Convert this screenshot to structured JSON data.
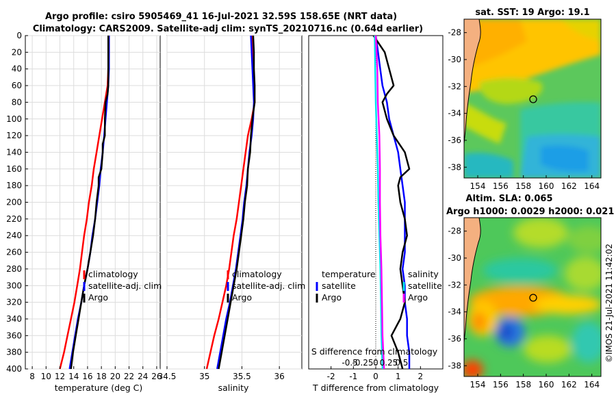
{
  "titles": {
    "line1": "Argo profile: csiro 5905469_41 16-Jul-2021 32.59S 158.65E (NRT data)",
    "line2": "Climatology: CARS2009. Satellite-adj clim: synTS_20210716.nc (0.64d earlier)"
  },
  "colors": {
    "climatology": "#ff0000",
    "satellite": "#0000ff",
    "argo": "#000000",
    "s_satellite": "#00e5ee",
    "s_argo": "#ff00ff"
  },
  "chart_data": [
    {
      "type": "line",
      "id": "temperature",
      "xlabel": "temperature (deg C)",
      "ylabel": "",
      "xlim": [
        7,
        26.5
      ],
      "ylim": [
        400,
        0
      ],
      "x_ticks": [
        "8",
        "10",
        "12",
        "14",
        "16",
        "18",
        "20",
        "22",
        "24",
        "26"
      ],
      "y_ticks": [
        "0",
        "20",
        "40",
        "60",
        "80",
        "100",
        "120",
        "140",
        "160",
        "180",
        "200",
        "220",
        "240",
        "260",
        "280",
        "300",
        "320",
        "340",
        "360",
        "380",
        "400"
      ],
      "grid": true,
      "legend": [
        "climatology",
        "satellite-adj. clim",
        "Argo"
      ],
      "series": [
        {
          "name": "climatology",
          "color": "#ff0000",
          "depth": [
            0,
            20,
            40,
            60,
            80,
            100,
            120,
            140,
            160,
            180,
            200,
            220,
            240,
            260,
            280,
            300,
            320,
            340,
            360,
            380,
            400
          ],
          "values": [
            19.1,
            19.1,
            19.0,
            18.9,
            18.5,
            18.1,
            17.7,
            17.3,
            16.9,
            16.6,
            16.2,
            15.9,
            15.5,
            15.2,
            14.9,
            14.5,
            14.1,
            13.6,
            13.1,
            12.6,
            12.0
          ]
        },
        {
          "name": "satellite-adj. clim",
          "color": "#0000ff",
          "depth": [
            0,
            20,
            40,
            60,
            80,
            100,
            120,
            140,
            160,
            180,
            200,
            220,
            240,
            260,
            280,
            300,
            320,
            340,
            360,
            380,
            400
          ],
          "values": [
            19.1,
            19.1,
            19.1,
            19.0,
            18.8,
            18.6,
            18.4,
            18.2,
            17.9,
            17.7,
            17.4,
            17.1,
            16.7,
            16.4,
            16.0,
            15.5,
            15.1,
            14.6,
            14.2,
            13.8,
            13.4
          ]
        },
        {
          "name": "Argo",
          "color": "#000000",
          "depth": [
            0,
            20,
            40,
            60,
            70,
            80,
            100,
            120,
            130,
            140,
            160,
            170,
            180,
            200,
            220,
            240,
            260,
            280,
            300,
            320,
            340,
            360,
            380,
            400
          ],
          "values": [
            19.0,
            19.0,
            19.0,
            19.0,
            18.9,
            18.6,
            18.5,
            18.5,
            18.2,
            18.2,
            18.0,
            17.6,
            17.6,
            17.3,
            17.1,
            16.8,
            16.4,
            16.0,
            15.5,
            15.1,
            14.7,
            14.3,
            13.9,
            13.6
          ]
        }
      ]
    },
    {
      "type": "line",
      "id": "salinity",
      "xlabel": "salinity",
      "ylabel": "",
      "xlim": [
        34.5,
        36.3
      ],
      "ylim": [
        400,
        0
      ],
      "x_ticks": [
        "34.5",
        "35",
        "35.5",
        "36"
      ],
      "grid": true,
      "legend": [
        "climatology",
        "satellite-adj. clim",
        "Argo"
      ],
      "series": [
        {
          "name": "climatology",
          "color": "#ff0000",
          "depth": [
            0,
            20,
            40,
            60,
            80,
            100,
            120,
            140,
            160,
            180,
            200,
            220,
            240,
            260,
            280,
            300,
            320,
            340,
            360,
            380,
            400
          ],
          "values": [
            35.63,
            35.64,
            35.65,
            35.66,
            35.67,
            35.63,
            35.58,
            35.55,
            35.52,
            35.49,
            35.46,
            35.43,
            35.39,
            35.36,
            35.33,
            35.29,
            35.24,
            35.19,
            35.13,
            35.08,
            35.03
          ]
        },
        {
          "name": "satellite-adj. clim",
          "color": "#0000ff",
          "depth": [
            0,
            20,
            40,
            60,
            80,
            100,
            120,
            140,
            160,
            180,
            200,
            220,
            240,
            260,
            280,
            300,
            320,
            340,
            360,
            380,
            400
          ],
          "values": [
            35.62,
            35.63,
            35.64,
            35.65,
            35.66,
            35.65,
            35.63,
            35.6,
            35.58,
            35.56,
            35.53,
            35.51,
            35.48,
            35.45,
            35.42,
            35.38,
            35.34,
            35.29,
            35.25,
            35.21,
            35.17
          ]
        },
        {
          "name": "Argo",
          "color": "#000000",
          "depth": [
            0,
            20,
            40,
            60,
            80,
            100,
            120,
            140,
            160,
            180,
            200,
            220,
            240,
            260,
            280,
            300,
            320,
            340,
            360,
            380,
            400
          ],
          "values": [
            35.65,
            35.66,
            35.66,
            35.67,
            35.67,
            35.64,
            35.62,
            35.61,
            35.58,
            35.57,
            35.54,
            35.52,
            35.49,
            35.46,
            35.43,
            35.39,
            35.35,
            35.31,
            35.27,
            35.23,
            35.19
          ]
        }
      ]
    },
    {
      "type": "line",
      "id": "differences",
      "xlabel": "T difference from climatology",
      "secondary_xlabel": "S difference from climatology",
      "xlim": [
        -3,
        3
      ],
      "ylim": [
        400,
        0
      ],
      "x_ticks": [
        "-2",
        "-1",
        "0",
        "1",
        "2"
      ],
      "secondary_x_ticks": [
        "-0.5",
        "-0.25",
        "0",
        "0.25",
        "0.5"
      ],
      "grid": false,
      "legend_left_title": "temperature",
      "legend_right_title": "salinity",
      "legend_left": [
        "satellite",
        "Argo"
      ],
      "legend_right": [
        "satellite",
        "Argo"
      ],
      "series": [
        {
          "name": "temperature satellite",
          "color": "#0000ff",
          "depth": [
            0,
            20,
            40,
            60,
            80,
            100,
            120,
            140,
            160,
            180,
            200,
            220,
            240,
            260,
            280,
            300,
            320,
            340,
            360,
            380,
            400
          ],
          "values": [
            0.0,
            0.1,
            0.2,
            0.3,
            0.5,
            0.6,
            0.8,
            1.0,
            1.1,
            1.2,
            1.3,
            1.3,
            1.3,
            1.3,
            1.2,
            1.3,
            1.3,
            1.4,
            1.4,
            1.5,
            1.5
          ]
        },
        {
          "name": "temperature Argo",
          "color": "#000000",
          "depth": [
            0,
            20,
            40,
            60,
            70,
            80,
            100,
            120,
            140,
            160,
            170,
            180,
            200,
            220,
            240,
            260,
            280,
            300,
            320,
            340,
            360,
            380,
            400
          ],
          "values": [
            -0.1,
            0.4,
            0.6,
            0.8,
            0.5,
            0.3,
            0.5,
            0.8,
            1.3,
            1.5,
            1.1,
            1.0,
            1.1,
            1.3,
            1.4,
            1.2,
            1.1,
            1.2,
            1.3,
            1.1,
            0.7,
            1.0,
            1.2
          ]
        },
        {
          "name": "salinity satellite",
          "color": "#00e5ee",
          "depth": [
            0,
            40,
            80,
            120,
            160,
            200,
            240,
            280,
            320,
            360,
            400
          ],
          "values": [
            -0.02,
            -0.01,
            0.0,
            0.02,
            0.04,
            0.05,
            0.07,
            0.09,
            0.1,
            0.11,
            0.13
          ]
        },
        {
          "name": "salinity Argo",
          "color": "#ff00ff",
          "depth": [
            0,
            40,
            80,
            120,
            160,
            200,
            240,
            280,
            320,
            360,
            400
          ],
          "values": [
            0.0,
            0.03,
            0.04,
            0.07,
            0.08,
            0.08,
            0.09,
            0.11,
            0.12,
            0.13,
            0.16
          ]
        }
      ]
    }
  ],
  "maps": {
    "sst": {
      "title": "sat. SST: 19 Argo: 19.1",
      "x_ticks": [
        "154",
        "156",
        "158",
        "160",
        "162",
        "164"
      ],
      "y_ticks": [
        "-28",
        "-30",
        "-32",
        "-34",
        "-36",
        "-38"
      ],
      "float_lon": 158.65,
      "float_lat": -32.59
    },
    "sla": {
      "title1": "Altim. SLA: 0.065",
      "title2": "Argo h1000: 0.0029 h2000: 0.021",
      "x_ticks": [
        "154",
        "156",
        "158",
        "160",
        "162",
        "164"
      ],
      "y_ticks": [
        "-28",
        "-30",
        "-32",
        "-34",
        "-36",
        "-38"
      ],
      "float_lon": 158.65,
      "float_lat": -32.59
    },
    "lon_range": [
      152.8,
      164.8
    ],
    "lat_range": [
      -27,
      -38.8
    ]
  },
  "watermark": "©IMOS 21-Jul-2021 11:42:02"
}
